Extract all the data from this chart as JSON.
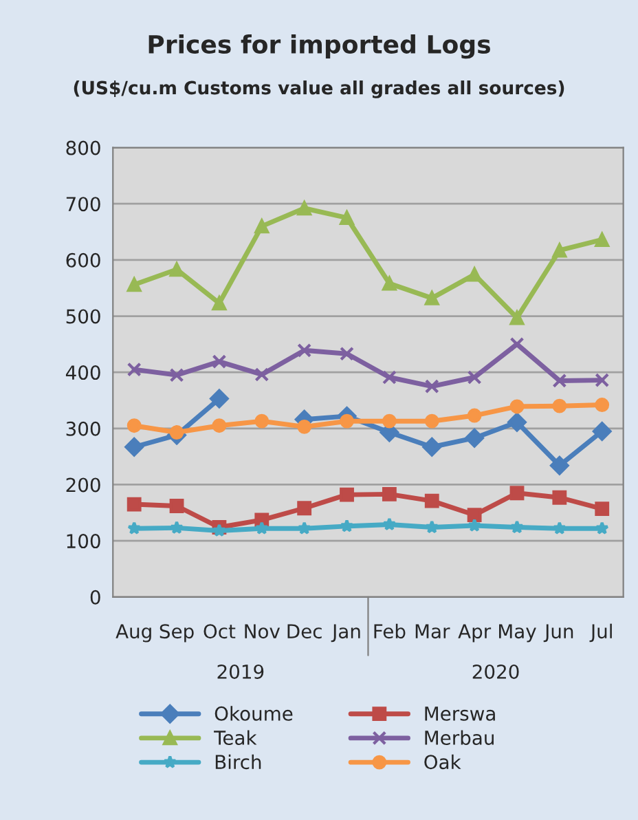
{
  "chart_data": {
    "type": "line",
    "title": "Prices for imported Logs",
    "subtitle": "(US$/cu.m Customs value all grades all sources)",
    "categories": [
      "Aug",
      "Sep",
      "Oct",
      "Nov",
      "Dec",
      "Jan",
      "Feb",
      "Mar",
      "Apr",
      "May",
      "Jun",
      "Jul"
    ],
    "series": [
      {
        "name": "Okoume",
        "color": "#4a7ebb",
        "marker": "diamond",
        "values": [
          267,
          288,
          353,
          null,
          316,
          322,
          293,
          267,
          283,
          311,
          234,
          295
        ]
      },
      {
        "name": "Merswa",
        "color": "#be4b48",
        "marker": "square",
        "values": [
          165,
          162,
          124,
          137,
          158,
          182,
          183,
          171,
          146,
          185,
          177,
          157
        ]
      },
      {
        "name": "Teak",
        "color": "#98b954",
        "marker": "triangle",
        "values": [
          556,
          583,
          523,
          660,
          692,
          675,
          558,
          532,
          574,
          497,
          617,
          636
        ]
      },
      {
        "name": "Merbau",
        "color": "#7d60a0",
        "marker": "cross",
        "values": [
          405,
          395,
          419,
          396,
          439,
          433,
          391,
          375,
          391,
          450,
          385,
          386
        ]
      },
      {
        "name": "Birch",
        "color": "#46aac5",
        "marker": "star",
        "values": [
          122,
          123,
          118,
          122,
          122,
          126,
          129,
          124,
          127,
          124,
          122,
          122
        ]
      },
      {
        "name": "Oak",
        "color": "#f79646",
        "marker": "circle",
        "values": [
          305,
          293,
          305,
          313,
          303,
          313,
          313,
          313,
          323,
          339,
          340,
          342
        ]
      }
    ],
    "ylim": [
      0,
      800
    ],
    "yticks": [
      0,
      100,
      200,
      300,
      400,
      500,
      600,
      700,
      800
    ],
    "grid": "y",
    "legend": "bottom",
    "annotations": [
      "2019",
      "2020"
    ]
  }
}
